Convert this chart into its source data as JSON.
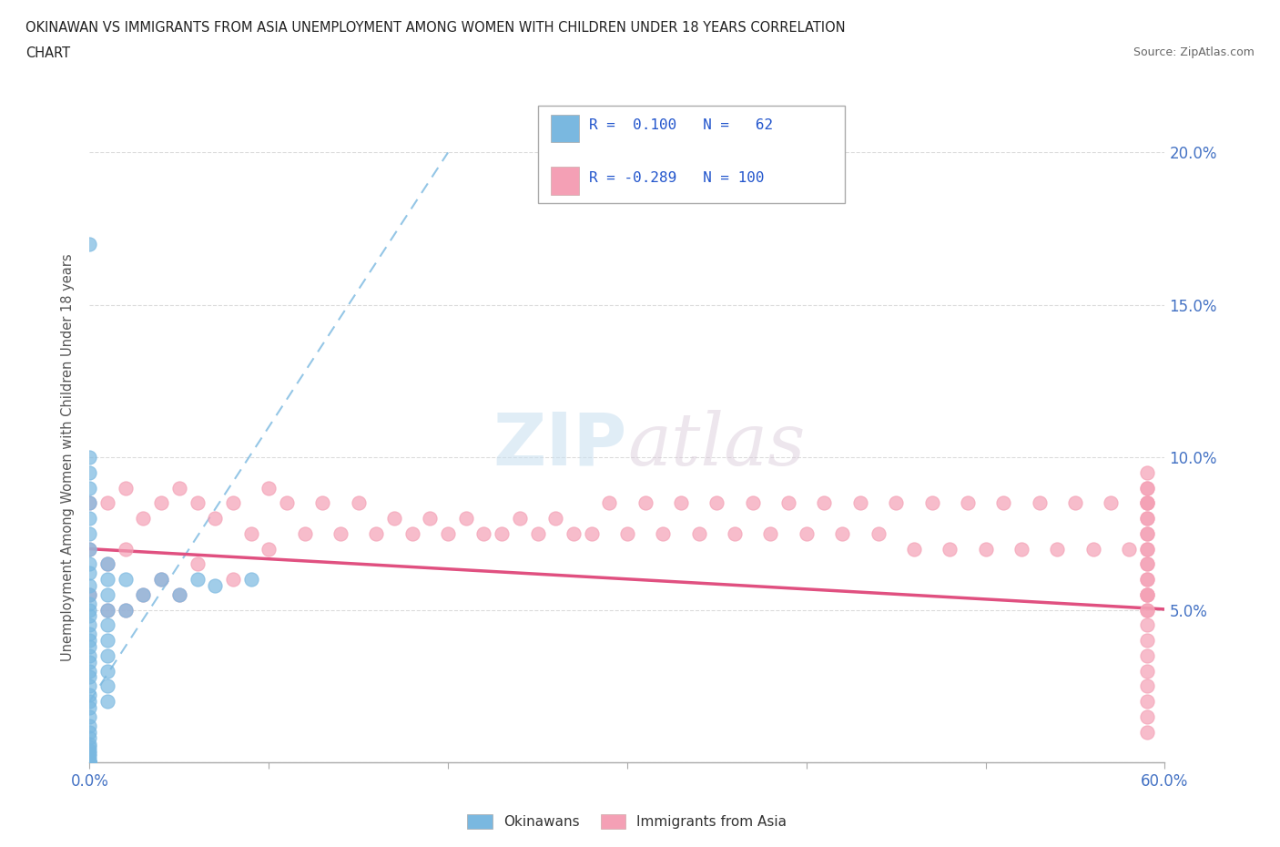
{
  "title_line1": "OKINAWAN VS IMMIGRANTS FROM ASIA UNEMPLOYMENT AMONG WOMEN WITH CHILDREN UNDER 18 YEARS CORRELATION",
  "title_line2": "CHART",
  "source": "Source: ZipAtlas.com",
  "ylabel": "Unemployment Among Women with Children Under 18 years",
  "xlim": [
    0.0,
    0.6
  ],
  "ylim": [
    0.0,
    0.2
  ],
  "color_okinawan": "#7ab8e0",
  "color_immigrants": "#f4a0b5",
  "trendline_okinawan_color": "#7ab8e0",
  "trendline_immigrants_color": "#e05080",
  "watermark_zip": "ZIP",
  "watermark_atlas": "atlas",
  "background_color": "#ffffff",
  "okinawan_x": [
    0.0,
    0.0,
    0.0,
    0.0,
    0.0,
    0.0,
    0.0,
    0.0,
    0.0,
    0.0,
    0.0,
    0.0,
    0.0,
    0.0,
    0.0,
    0.0,
    0.0,
    0.0,
    0.0,
    0.0,
    0.0,
    0.0,
    0.0,
    0.0,
    0.0,
    0.0,
    0.0,
    0.0,
    0.0,
    0.0,
    0.0,
    0.0,
    0.0,
    0.0,
    0.0,
    0.0,
    0.0,
    0.0,
    0.0,
    0.0,
    0.0,
    0.0,
    0.0,
    0.0,
    0.01,
    0.01,
    0.01,
    0.01,
    0.01,
    0.01,
    0.01,
    0.01,
    0.01,
    0.01,
    0.02,
    0.02,
    0.03,
    0.04,
    0.05,
    0.06,
    0.07,
    0.09
  ],
  "okinawan_y": [
    0.17,
    0.1,
    0.095,
    0.09,
    0.085,
    0.08,
    0.075,
    0.07,
    0.065,
    0.062,
    0.058,
    0.055,
    0.052,
    0.05,
    0.048,
    0.045,
    0.042,
    0.04,
    0.038,
    0.035,
    0.033,
    0.03,
    0.028,
    0.025,
    0.022,
    0.02,
    0.018,
    0.015,
    0.012,
    0.01,
    0.008,
    0.006,
    0.005,
    0.004,
    0.003,
    0.002,
    0.001,
    0.0,
    0.0,
    0.0,
    0.0,
    0.0,
    0.0,
    0.0,
    0.065,
    0.06,
    0.055,
    0.05,
    0.045,
    0.04,
    0.035,
    0.03,
    0.025,
    0.02,
    0.06,
    0.05,
    0.055,
    0.06,
    0.055,
    0.06,
    0.058,
    0.06
  ],
  "immigrants_x": [
    0.0,
    0.0,
    0.0,
    0.01,
    0.01,
    0.01,
    0.02,
    0.02,
    0.02,
    0.03,
    0.03,
    0.04,
    0.04,
    0.05,
    0.05,
    0.06,
    0.06,
    0.07,
    0.08,
    0.08,
    0.09,
    0.1,
    0.1,
    0.11,
    0.12,
    0.13,
    0.14,
    0.15,
    0.16,
    0.17,
    0.18,
    0.19,
    0.2,
    0.21,
    0.22,
    0.23,
    0.24,
    0.25,
    0.26,
    0.27,
    0.28,
    0.29,
    0.3,
    0.31,
    0.32,
    0.33,
    0.34,
    0.35,
    0.36,
    0.37,
    0.38,
    0.39,
    0.4,
    0.41,
    0.42,
    0.43,
    0.44,
    0.45,
    0.46,
    0.47,
    0.48,
    0.49,
    0.5,
    0.51,
    0.52,
    0.53,
    0.54,
    0.55,
    0.56,
    0.57,
    0.58,
    0.59,
    0.59,
    0.59,
    0.59,
    0.59,
    0.59,
    0.59,
    0.59,
    0.59,
    0.59,
    0.59,
    0.59,
    0.59,
    0.59,
    0.59,
    0.59,
    0.59,
    0.59,
    0.59,
    0.59,
    0.59,
    0.59,
    0.59,
    0.59,
    0.59,
    0.59,
    0.59,
    0.59,
    0.59
  ],
  "immigrants_y": [
    0.085,
    0.07,
    0.055,
    0.085,
    0.065,
    0.05,
    0.09,
    0.07,
    0.05,
    0.08,
    0.055,
    0.085,
    0.06,
    0.09,
    0.055,
    0.085,
    0.065,
    0.08,
    0.085,
    0.06,
    0.075,
    0.09,
    0.07,
    0.085,
    0.075,
    0.085,
    0.075,
    0.085,
    0.075,
    0.08,
    0.075,
    0.08,
    0.075,
    0.08,
    0.075,
    0.075,
    0.08,
    0.075,
    0.08,
    0.075,
    0.075,
    0.085,
    0.075,
    0.085,
    0.075,
    0.085,
    0.075,
    0.085,
    0.075,
    0.085,
    0.075,
    0.085,
    0.075,
    0.085,
    0.075,
    0.085,
    0.075,
    0.085,
    0.07,
    0.085,
    0.07,
    0.085,
    0.07,
    0.085,
    0.07,
    0.085,
    0.07,
    0.085,
    0.07,
    0.085,
    0.07,
    0.085,
    0.09,
    0.085,
    0.08,
    0.075,
    0.07,
    0.065,
    0.06,
    0.055,
    0.05,
    0.045,
    0.04,
    0.035,
    0.03,
    0.025,
    0.02,
    0.015,
    0.01,
    0.05,
    0.055,
    0.06,
    0.065,
    0.07,
    0.075,
    0.08,
    0.085,
    0.09,
    0.095,
    0.055
  ]
}
